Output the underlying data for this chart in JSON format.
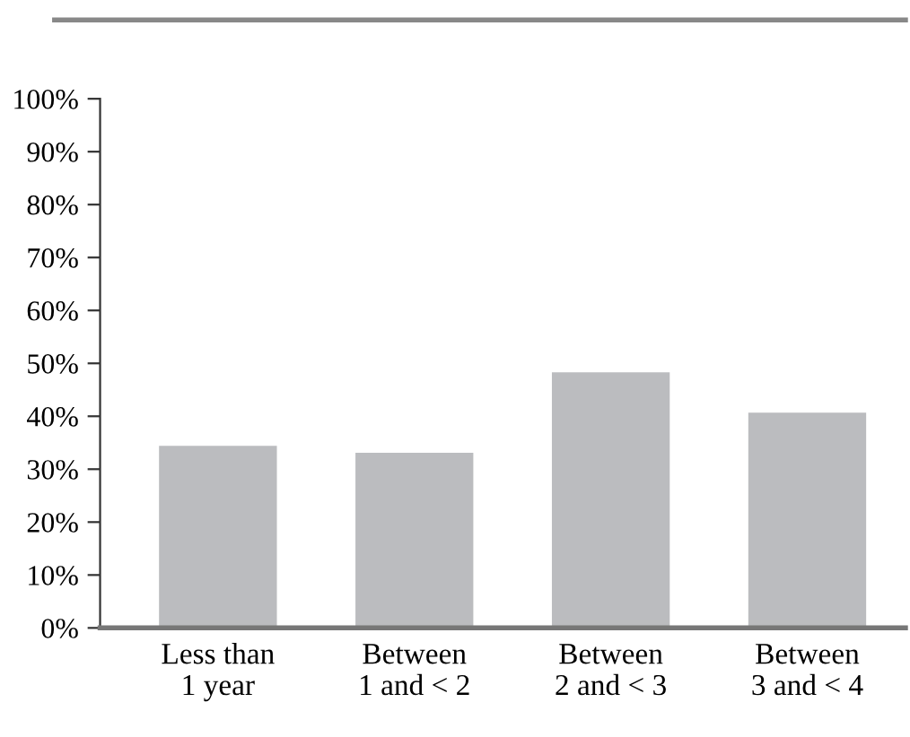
{
  "chart_data": {
    "type": "bar",
    "categories": [
      "Less than\n1 year",
      "Between\n1 and < 2",
      "Between\n2 and < 3",
      "Between\n3 and < 4"
    ],
    "values": [
      34.4,
      33.1,
      48.3,
      40.7
    ],
    "color": "#bbbcbf",
    "ylim": [
      0,
      100
    ],
    "yticks": [
      {
        "value": 0,
        "label": "0%"
      },
      {
        "value": 10,
        "label": "10%"
      },
      {
        "value": 20,
        "label": "20%"
      },
      {
        "value": 30,
        "label": "30%"
      },
      {
        "value": 40,
        "label": "40%"
      },
      {
        "value": 50,
        "label": "50%"
      },
      {
        "value": 60,
        "label": "60%"
      },
      {
        "value": 70,
        "label": "70%"
      },
      {
        "value": 80,
        "label": "80%"
      },
      {
        "value": 90,
        "label": "90%"
      },
      {
        "value": 100,
        "label": "100%"
      }
    ],
    "grid": false,
    "legend": false
  }
}
